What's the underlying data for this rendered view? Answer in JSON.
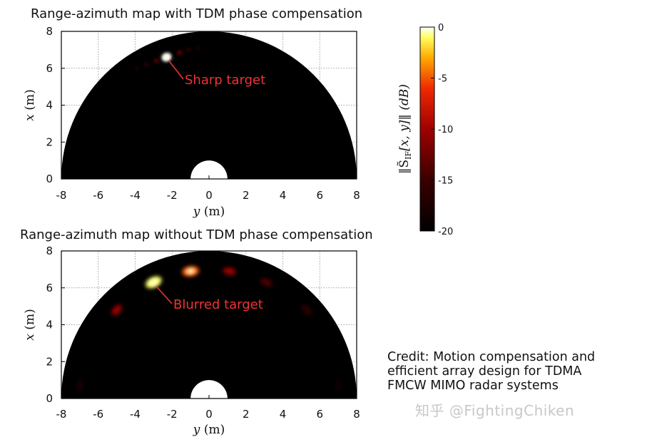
{
  "chart_data": [
    {
      "type": "heatmap",
      "title": "Range-azimuth map with TDM phase compensation",
      "xlabel": {
        "var": "y",
        "unit": "(m)"
      },
      "ylabel": {
        "var": "x",
        "unit": "(m)"
      },
      "xlim": [
        -8,
        8
      ],
      "ylim": [
        0,
        8
      ],
      "xticks": [
        "-8",
        "-6",
        "-4",
        "-2",
        "0",
        "2",
        "4",
        "6",
        "8"
      ],
      "yticks": [
        "0",
        "2",
        "4",
        "6",
        "8"
      ],
      "grid": true,
      "field_of_view_radius": 8,
      "blind_zone_radius": 1,
      "color_scale": "black-red-yellow-white, dB",
      "spots": [
        {
          "y": -2.3,
          "x": 6.6,
          "level_db": 0
        },
        {
          "y": -1.6,
          "x": 6.85,
          "level_db": -11
        },
        {
          "y": -2.85,
          "x": 6.4,
          "level_db": -12
        },
        {
          "y": -1.1,
          "x": 7.0,
          "level_db": -15
        },
        {
          "y": -3.4,
          "x": 6.2,
          "level_db": -15
        },
        {
          "y": -0.6,
          "x": 7.1,
          "level_db": -17
        },
        {
          "y": -3.9,
          "x": 6.0,
          "level_db": -17
        }
      ],
      "annotation": {
        "text": "Sharp target",
        "target": [
          -2.3,
          6.6
        ]
      }
    },
    {
      "type": "heatmap",
      "title": "Range-azimuth map without TDM phase compensation",
      "xlabel": {
        "var": "y",
        "unit": "(m)"
      },
      "ylabel": {
        "var": "x",
        "unit": "(m)"
      },
      "xlim": [
        -8,
        8
      ],
      "ylim": [
        0,
        8
      ],
      "xticks": [
        "-8",
        "-6",
        "-4",
        "-2",
        "0",
        "2",
        "4",
        "6",
        "8"
      ],
      "yticks": [
        "0",
        "2",
        "4",
        "6",
        "8"
      ],
      "grid": true,
      "field_of_view_radius": 8,
      "blind_zone_radius": 1,
      "color_scale": "black-red-yellow-white, dB",
      "spots": [
        {
          "y": -3.0,
          "x": 6.3,
          "level_db": -1
        },
        {
          "y": -1.0,
          "x": 6.9,
          "level_db": -5
        },
        {
          "y": 1.1,
          "x": 6.9,
          "level_db": -10
        },
        {
          "y": -5.0,
          "x": 4.8,
          "level_db": -10
        },
        {
          "y": 3.1,
          "x": 6.3,
          "level_db": -14
        },
        {
          "y": 5.3,
          "x": 4.8,
          "level_db": -16
        },
        {
          "y": -7.0,
          "x": 0.7,
          "level_db": -18
        },
        {
          "y": 7.0,
          "x": 0.7,
          "level_db": -19
        }
      ],
      "annotation": {
        "text": "Blurred target",
        "target": [
          -3.0,
          6.3
        ]
      }
    }
  ],
  "colorbar": {
    "label_math": "‖S̃",
    "label_sub": "IF",
    "label_rest": "[x, y]‖ (dB)",
    "ticks": [
      "0",
      "-5",
      "-10",
      "-15",
      "-20"
    ],
    "range_db": [
      -20,
      0
    ]
  },
  "credit_lines": [
    "Credit: Motion compensation and",
    "efficient array design for TDMA",
    "FMCW MIMO radar systems"
  ],
  "watermark": "知乎 @FightingChiken",
  "colors": {
    "annotation": "#ee3333",
    "background": "#000000"
  }
}
